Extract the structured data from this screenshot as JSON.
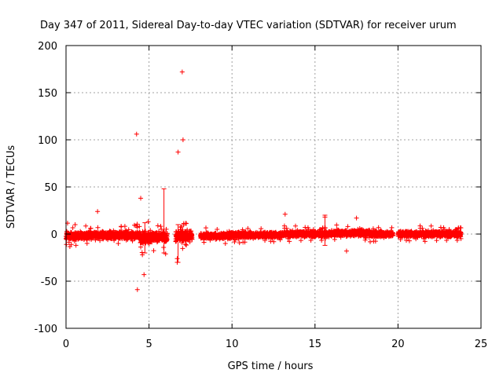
{
  "chart_data": {
    "type": "scatter",
    "title": "Day 347 of 2011, Sidereal Day-to-day VTEC variation (SDTVAR) for receiver urum",
    "xlabel": "GPS time / hours",
    "ylabel": "SDTVAR / TECUs",
    "xlim": [
      0,
      25
    ],
    "ylim": [
      -100,
      200
    ],
    "x_ticks": [
      0,
      5,
      10,
      15,
      20,
      25
    ],
    "y_ticks": [
      -100,
      -50,
      0,
      50,
      100,
      150,
      200
    ],
    "x_tick_labels": [
      "0",
      "5",
      "10",
      "15",
      "20",
      "25"
    ],
    "y_tick_labels": [
      "-100",
      "-50",
      "0",
      "50",
      "100",
      "150",
      "200"
    ],
    "grid": true,
    "marker": "+",
    "series_color": "#ff0000",
    "series": [
      {
        "name": "SDTVAR",
        "segments": [
          {
            "x_start": 0.0,
            "x_end": 1.6,
            "center": -2,
            "spread": 4
          },
          {
            "x_start": 1.6,
            "x_end": 3.2,
            "center": -1,
            "spread": 4
          },
          {
            "x_start": 3.2,
            "x_end": 4.4,
            "center": -1,
            "spread": 4
          },
          {
            "x_start": 4.4,
            "x_end": 5.3,
            "center": -4,
            "spread": 6
          },
          {
            "x_start": 5.3,
            "x_end": 6.1,
            "center": -3,
            "spread": 5
          },
          {
            "x_start": 6.6,
            "x_end": 7.6,
            "center": -2,
            "spread": 6
          },
          {
            "x_start": 8.1,
            "x_end": 10.0,
            "center": -2,
            "spread": 3
          },
          {
            "x_start": 10.0,
            "x_end": 13.0,
            "center": -1,
            "spread": 3
          },
          {
            "x_start": 13.0,
            "x_end": 16.0,
            "center": 0,
            "spread": 3
          },
          {
            "x_start": 16.0,
            "x_end": 18.3,
            "center": 1,
            "spread": 3
          },
          {
            "x_start": 18.3,
            "x_end": 19.7,
            "center": 0,
            "spread": 3
          },
          {
            "x_start": 20.0,
            "x_end": 23.8,
            "center": 0,
            "spread": 3
          }
        ],
        "points": [
          {
            "x": 7.0,
            "y": 172
          },
          {
            "x": 4.25,
            "y": 106
          },
          {
            "x": 7.05,
            "y": 100
          },
          {
            "x": 6.75,
            "y": 87
          },
          {
            "x": 4.5,
            "y": 38
          },
          {
            "x": 1.9,
            "y": 24
          },
          {
            "x": 13.2,
            "y": 21
          },
          {
            "x": 15.6,
            "y": 18
          },
          {
            "x": 17.5,
            "y": 17
          },
          {
            "x": 0.55,
            "y": 10
          },
          {
            "x": 4.7,
            "y": -43
          },
          {
            "x": 4.3,
            "y": -59
          },
          {
            "x": 6.7,
            "y": -26
          },
          {
            "x": 6.7,
            "y": -30
          },
          {
            "x": 6.0,
            "y": -21
          },
          {
            "x": 4.6,
            "y": -22
          },
          {
            "x": 16.9,
            "y": -18
          },
          {
            "x": 0.6,
            "y": -12
          },
          {
            "x": 7.2,
            "y": -11
          },
          {
            "x": 9.6,
            "y": -10
          }
        ],
        "error_bars": [
          {
            "x": 5.9,
            "y_low": -20,
            "y_high": 48
          },
          {
            "x": 6.75,
            "y_low": -30,
            "y_high": 10
          },
          {
            "x": 15.6,
            "y_low": -12,
            "y_high": 20
          },
          {
            "x": 4.75,
            "y_low": -20,
            "y_high": 12
          }
        ]
      }
    ]
  }
}
